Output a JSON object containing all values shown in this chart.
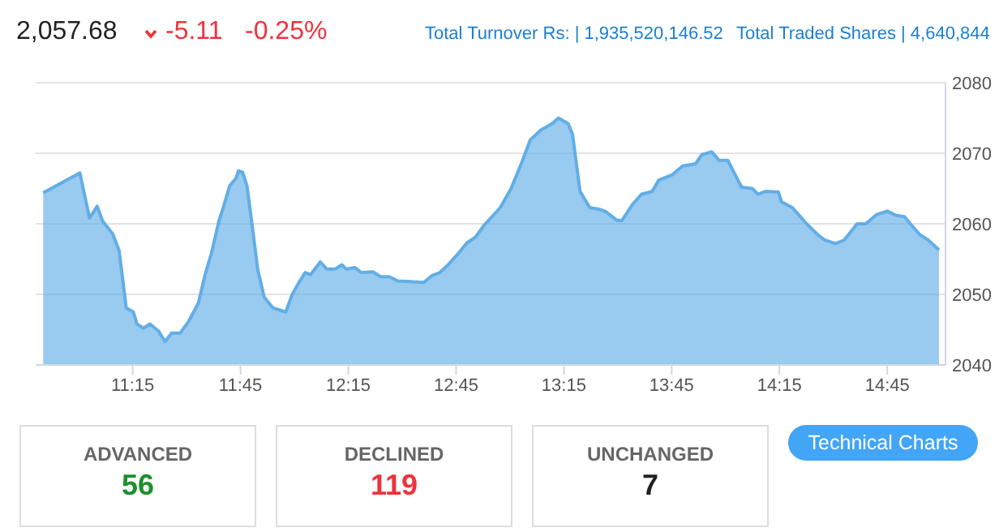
{
  "chart_data": {
    "type": "area",
    "x": [
      10.835,
      11.005,
      11.05,
      11.085,
      11.11,
      11.157,
      11.187,
      11.22,
      11.253,
      11.27,
      11.3,
      11.33,
      11.37,
      11.4,
      11.43,
      11.47,
      11.51,
      11.555,
      11.585,
      11.615,
      11.65,
      11.67,
      11.7,
      11.73,
      11.74,
      11.76,
      11.78,
      11.805,
      11.83,
      11.86,
      11.9,
      11.94,
      11.96,
      11.99,
      12.025,
      12.05,
      12.075,
      12.12,
      12.15,
      12.19,
      12.22,
      12.24,
      12.28,
      12.31,
      12.365,
      12.4,
      12.44,
      12.48,
      12.54,
      12.6,
      12.64,
      12.675,
      12.71,
      12.76,
      12.8,
      12.84,
      12.88,
      12.955,
      13.005,
      13.056,
      13.094,
      13.144,
      13.195,
      13.225,
      13.27,
      13.29,
      13.325,
      13.37,
      13.41,
      13.446,
      13.496,
      13.52,
      13.567,
      13.61,
      13.66,
      13.69,
      13.75,
      13.8,
      13.86,
      13.89,
      13.936,
      13.97,
      14.01,
      14.074,
      14.124,
      14.15,
      14.187,
      14.245,
      14.26,
      14.31,
      14.376,
      14.426,
      14.46,
      14.51,
      14.55,
      14.61,
      14.65,
      14.7,
      14.75,
      14.79,
      14.83,
      14.857,
      14.9,
      14.94,
      14.99
    ],
    "series": [
      {
        "color": "#62aee6",
        "values": [
          2064.4,
          2067.2,
          2060.8,
          2062.5,
          2060.4,
          2058.6,
          2056.2,
          2048.1,
          2047.5,
          2045.8,
          2045.2,
          2045.8,
          2044.8,
          2043.3,
          2044.5,
          2044.5,
          2046.2,
          2048.8,
          2052.7,
          2055.8,
          2060.4,
          2062.3,
          2065.4,
          2066.5,
          2067.5,
          2067.3,
          2065.4,
          2059.6,
          2053.5,
          2049.6,
          2048.1,
          2047.7,
          2047.5,
          2050.0,
          2051.9,
          2053.1,
          2052.8,
          2054.6,
          2053.6,
          2053.6,
          2054.2,
          2053.6,
          2053.8,
          2053.1,
          2053.2,
          2052.5,
          2052.5,
          2051.9,
          2051.8,
          2051.7,
          2052.7,
          2053.1,
          2054.1,
          2055.8,
          2057.3,
          2058.1,
          2059.8,
          2062.3,
          2065.0,
          2068.8,
          2071.9,
          2073.3,
          2074.2,
          2075.0,
          2074.2,
          2072.7,
          2064.6,
          2062.3,
          2062.1,
          2061.7,
          2060.5,
          2060.5,
          2062.7,
          2064.2,
          2064.6,
          2066.2,
          2066.9,
          2068.2,
          2068.5,
          2069.8,
          2070.2,
          2069.0,
          2069.0,
          2065.2,
          2065.0,
          2064.2,
          2064.6,
          2064.5,
          2063.1,
          2062.3,
          2060.0,
          2058.5,
          2057.7,
          2057.2,
          2057.7,
          2060.0,
          2060.0,
          2061.3,
          2061.8,
          2061.2,
          2061.0,
          2060.0,
          2058.5,
          2057.7,
          2056.3
        ]
      }
    ],
    "xlim": [
      10.8,
      15.02
    ],
    "xticks": [
      {
        "value": 11.25,
        "label": "11:15"
      },
      {
        "value": 11.75,
        "label": "11:45"
      },
      {
        "value": 12.25,
        "label": "12:15"
      },
      {
        "value": 12.75,
        "label": "12:45"
      },
      {
        "value": 13.25,
        "label": "13:15"
      },
      {
        "value": 13.75,
        "label": "13:45"
      },
      {
        "value": 14.25,
        "label": "14:15"
      },
      {
        "value": 14.75,
        "label": "14:45"
      }
    ],
    "ylim": [
      2040,
      2080
    ],
    "yticks": [
      2040,
      2050,
      2060,
      2070,
      2080
    ],
    "grid": "y",
    "legend": false,
    "marker": "none",
    "annotations": [
      "2,057.68",
      "-5.11",
      "-0.25%",
      "Total Turnover Rs: | 1,935,520,146.52",
      "Total Traded Shares | 4,640,844",
      "ADVANCED",
      "56",
      "DECLINED",
      "119",
      "UNCHANGED",
      "7",
      "Technical Charts"
    ]
  }
}
